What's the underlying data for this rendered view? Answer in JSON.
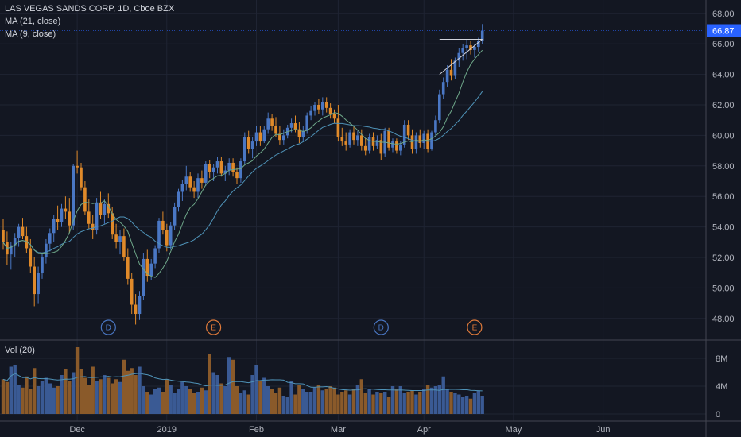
{
  "header": {
    "title": "LAS VEGAS SANDS CORP, 1D, Cboe BZX",
    "ma1": "MA (21, close)",
    "ma2": "MA (9, close)",
    "vol": "Vol (20)"
  },
  "chart_data": {
    "type": "candlestick",
    "title": "LAS VEGAS SANDS CORP, 1D, Cboe BZX",
    "last_price": "66.87",
    "colors": {
      "up": "#4a77c4",
      "down": "#e08a2a",
      "ma21": "#4f93b8",
      "ma9": "#6fa88a",
      "last_price_bg": "#2962ff"
    },
    "price_axis": {
      "range": [
        47,
        68
      ],
      "ticks": [
        "48.00",
        "50.00",
        "52.00",
        "54.00",
        "56.00",
        "58.00",
        "60.00",
        "62.00",
        "64.00",
        "66.00",
        "68.00"
      ]
    },
    "volume_axis": {
      "range": [
        0,
        11
      ],
      "ticks": [
        {
          "v": 0,
          "label": "0"
        },
        {
          "v": 4,
          "label": "4M"
        },
        {
          "v": 8,
          "label": "8M"
        }
      ]
    },
    "x_labels": [
      {
        "i": 19,
        "label": "Dec"
      },
      {
        "i": 42,
        "label": "2019"
      },
      {
        "i": 65,
        "label": "Feb"
      },
      {
        "i": 86,
        "label": "Mar"
      },
      {
        "i": 108,
        "label": "Apr"
      },
      {
        "i": 131,
        "label": "May"
      },
      {
        "i": 154,
        "label": "Jun"
      }
    ],
    "event_markers": [
      {
        "i": 27,
        "label": "D",
        "color": "#4a77c4"
      },
      {
        "i": 54,
        "label": "E",
        "color": "#e07a3a"
      },
      {
        "i": 97,
        "label": "D",
        "color": "#4a77c4"
      },
      {
        "i": 121,
        "label": "E",
        "color": "#e07a3a"
      }
    ],
    "candles": [
      [
        53.8,
        54.5,
        52.5,
        53.0
      ],
      [
        53.0,
        53.7,
        51.5,
        52.2
      ],
      [
        52.2,
        53.0,
        51.2,
        52.8
      ],
      [
        52.8,
        53.6,
        52.0,
        53.3
      ],
      [
        53.3,
        54.2,
        52.7,
        54.0
      ],
      [
        54.0,
        54.6,
        53.2,
        53.4
      ],
      [
        53.4,
        54.0,
        52.3,
        52.6
      ],
      [
        52.6,
        53.2,
        51.0,
        51.4
      ],
      [
        51.4,
        52.0,
        48.8,
        49.6
      ],
      [
        49.6,
        51.4,
        49.0,
        51.0
      ],
      [
        51.0,
        52.3,
        50.6,
        52.0
      ],
      [
        52.0,
        53.2,
        51.6,
        52.9
      ],
      [
        52.9,
        53.9,
        52.4,
        53.6
      ],
      [
        53.6,
        54.8,
        53.0,
        54.5
      ],
      [
        54.5,
        55.4,
        53.8,
        54.3
      ],
      [
        54.3,
        55.5,
        54.0,
        55.2
      ],
      [
        55.2,
        56.0,
        54.5,
        55.0
      ],
      [
        55.0,
        55.9,
        53.6,
        54.1
      ],
      [
        54.1,
        58.1,
        53.8,
        58.0
      ],
      [
        58.0,
        59.0,
        57.5,
        57.9
      ],
      [
        57.9,
        58.2,
        56.4,
        56.6
      ],
      [
        56.6,
        57.0,
        54.8,
        55.0
      ],
      [
        55.0,
        55.8,
        53.9,
        54.2
      ],
      [
        54.2,
        54.8,
        53.2,
        53.8
      ],
      [
        53.8,
        55.9,
        53.5,
        55.6
      ],
      [
        55.6,
        56.3,
        54.5,
        54.8
      ],
      [
        54.8,
        55.8,
        54.2,
        55.5
      ],
      [
        55.5,
        56.2,
        54.6,
        54.9
      ],
      [
        54.9,
        55.3,
        53.2,
        53.5
      ],
      [
        53.5,
        54.2,
        52.6,
        53.0
      ],
      [
        53.0,
        53.8,
        52.2,
        53.4
      ],
      [
        53.4,
        53.9,
        51.8,
        52.0
      ],
      [
        52.0,
        52.6,
        50.2,
        50.6
      ],
      [
        50.6,
        51.0,
        48.3,
        48.9
      ],
      [
        48.9,
        49.6,
        47.6,
        48.3
      ],
      [
        48.3,
        49.8,
        47.9,
        49.5
      ],
      [
        49.5,
        52.3,
        49.2,
        51.9
      ],
      [
        51.9,
        52.5,
        50.4,
        50.8
      ],
      [
        50.8,
        51.9,
        50.5,
        51.6
      ],
      [
        51.6,
        52.8,
        51.3,
        52.6
      ],
      [
        52.6,
        54.6,
        52.3,
        54.4
      ],
      [
        54.4,
        55.0,
        53.5,
        53.8
      ],
      [
        53.8,
        54.2,
        52.4,
        52.8
      ],
      [
        52.8,
        54.3,
        52.5,
        54.1
      ],
      [
        54.1,
        55.6,
        53.8,
        55.3
      ],
      [
        55.3,
        56.5,
        55.0,
        56.3
      ],
      [
        56.3,
        57.1,
        55.7,
        56.8
      ],
      [
        56.8,
        58.0,
        56.4,
        57.3
      ],
      [
        57.3,
        57.6,
        56.3,
        56.6
      ],
      [
        56.6,
        57.0,
        55.9,
        56.3
      ],
      [
        56.3,
        57.5,
        55.9,
        57.2
      ],
      [
        57.2,
        57.7,
        56.5,
        56.9
      ],
      [
        56.9,
        58.3,
        56.7,
        58.1
      ],
      [
        58.1,
        58.4,
        57.2,
        57.6
      ],
      [
        57.6,
        58.1,
        57.0,
        57.9
      ],
      [
        57.9,
        58.6,
        57.5,
        58.3
      ],
      [
        58.3,
        58.6,
        57.3,
        57.5
      ],
      [
        57.5,
        58.0,
        57.0,
        57.7
      ],
      [
        57.7,
        58.5,
        57.4,
        58.2
      ],
      [
        58.2,
        58.5,
        57.3,
        57.6
      ],
      [
        57.6,
        57.9,
        56.8,
        57.2
      ],
      [
        57.2,
        58.5,
        56.9,
        58.3
      ],
      [
        58.3,
        60.2,
        58.1,
        59.9
      ],
      [
        59.9,
        60.3,
        58.8,
        59.1
      ],
      [
        59.1,
        59.9,
        58.5,
        59.6
      ],
      [
        59.6,
        60.6,
        59.3,
        60.2
      ],
      [
        60.2,
        60.6,
        59.3,
        59.6
      ],
      [
        59.6,
        60.6,
        59.5,
        60.4
      ],
      [
        60.4,
        61.5,
        60.1,
        61.1
      ],
      [
        61.1,
        61.4,
        60.3,
        60.6
      ],
      [
        60.6,
        61.2,
        59.9,
        60.1
      ],
      [
        60.1,
        60.6,
        59.4,
        59.7
      ],
      [
        59.7,
        60.4,
        59.4,
        60.0
      ],
      [
        60.0,
        60.7,
        59.8,
        60.5
      ],
      [
        60.5,
        61.1,
        60.2,
        60.8
      ],
      [
        60.8,
        61.3,
        60.2,
        60.4
      ],
      [
        60.4,
        60.9,
        59.5,
        59.9
      ],
      [
        59.9,
        60.6,
        59.6,
        60.3
      ],
      [
        60.3,
        61.5,
        60.1,
        61.3
      ],
      [
        61.3,
        61.9,
        61.0,
        61.6
      ],
      [
        61.6,
        62.2,
        61.3,
        62.0
      ],
      [
        62.0,
        62.4,
        61.4,
        61.7
      ],
      [
        61.7,
        62.5,
        61.3,
        62.2
      ],
      [
        62.2,
        62.5,
        61.5,
        61.8
      ],
      [
        61.8,
        62.1,
        61.1,
        61.4
      ],
      [
        61.4,
        61.7,
        60.8,
        61.1
      ],
      [
        61.1,
        62.0,
        59.6,
        59.9
      ],
      [
        59.9,
        60.5,
        59.3,
        59.6
      ],
      [
        59.6,
        60.2,
        59.0,
        59.4
      ],
      [
        59.4,
        60.4,
        59.2,
        60.2
      ],
      [
        60.2,
        60.6,
        59.4,
        59.7
      ],
      [
        59.7,
        60.3,
        59.3,
        60.0
      ],
      [
        60.0,
        60.4,
        59.0,
        59.3
      ],
      [
        59.3,
        59.8,
        58.7,
        59.0
      ],
      [
        59.0,
        60.1,
        58.8,
        59.9
      ],
      [
        59.9,
        60.2,
        59.0,
        59.3
      ],
      [
        59.3,
        60.0,
        59.1,
        59.7
      ],
      [
        59.7,
        60.1,
        58.4,
        58.8
      ],
      [
        58.8,
        60.5,
        58.6,
        60.3
      ],
      [
        60.3,
        60.5,
        59.0,
        59.2
      ],
      [
        59.2,
        59.8,
        58.9,
        59.6
      ],
      [
        59.6,
        59.8,
        58.8,
        59.0
      ],
      [
        59.0,
        59.6,
        58.7,
        59.4
      ],
      [
        59.4,
        61.0,
        59.2,
        60.7
      ],
      [
        60.7,
        61.0,
        59.7,
        60.0
      ],
      [
        60.0,
        60.4,
        58.8,
        59.1
      ],
      [
        59.1,
        60.2,
        58.8,
        60.0
      ],
      [
        60.0,
        60.4,
        59.2,
        59.5
      ],
      [
        59.5,
        60.3,
        59.1,
        60.1
      ],
      [
        60.1,
        60.4,
        58.9,
        59.1
      ],
      [
        59.1,
        60.3,
        59.0,
        60.2
      ],
      [
        60.2,
        61.3,
        60.0,
        61.0
      ],
      [
        61.0,
        63.0,
        60.8,
        62.7
      ],
      [
        62.7,
        63.8,
        62.4,
        63.5
      ],
      [
        63.5,
        64.6,
        63.2,
        64.3
      ],
      [
        64.3,
        65.0,
        63.6,
        63.9
      ],
      [
        63.9,
        65.1,
        63.7,
        64.9
      ],
      [
        64.9,
        65.7,
        64.5,
        65.4
      ],
      [
        65.4,
        66.0,
        64.9,
        65.7
      ],
      [
        65.7,
        66.3,
        65.0,
        65.9
      ],
      [
        65.9,
        66.2,
        65.3,
        65.6
      ],
      [
        65.6,
        66.0,
        65.1,
        65.8
      ],
      [
        65.8,
        66.4,
        65.5,
        66.2
      ],
      [
        66.2,
        67.3,
        66.0,
        66.87
      ]
    ],
    "volumes": [
      5.0,
      4.6,
      6.8,
      7.0,
      4.2,
      3.8,
      5.4,
      3.6,
      6.6,
      4.0,
      4.8,
      5.2,
      4.4,
      3.8,
      4.0,
      5.6,
      6.4,
      4.8,
      6.0,
      9.6,
      6.4,
      5.2,
      4.2,
      6.8,
      4.8,
      5.0,
      5.6,
      5.2,
      4.4,
      5.0,
      4.6,
      7.8,
      6.2,
      6.6,
      5.6,
      6.8,
      4.0,
      3.2,
      2.8,
      3.6,
      3.8,
      3.2,
      5.0,
      4.2,
      3.0,
      3.6,
      4.6,
      4.0,
      3.6,
      3.0,
      3.2,
      3.8,
      3.4,
      8.6,
      6.0,
      5.6,
      4.4,
      4.0,
      8.2,
      7.8,
      4.0,
      3.0,
      3.4,
      2.8,
      5.6,
      7.0,
      4.8,
      5.2,
      4.0,
      3.6,
      3.0,
      3.8,
      2.6,
      2.4,
      4.8,
      2.8,
      4.2,
      3.6,
      3.2,
      3.2,
      3.8,
      4.2,
      3.4,
      3.6,
      4.0,
      3.8,
      2.8,
      3.2,
      3.4,
      2.8,
      3.6,
      4.2,
      5.0,
      3.0,
      3.6,
      2.8,
      3.2,
      3.0,
      3.2,
      2.4,
      4.0,
      3.6,
      4.0,
      3.0,
      3.2,
      3.4,
      2.8,
      3.2,
      3.6,
      4.2,
      3.8,
      4.0,
      4.2,
      5.4,
      3.6,
      3.2,
      3.0,
      2.8,
      2.4,
      2.6,
      2.2,
      3.0,
      3.4,
      2.6
    ]
  }
}
